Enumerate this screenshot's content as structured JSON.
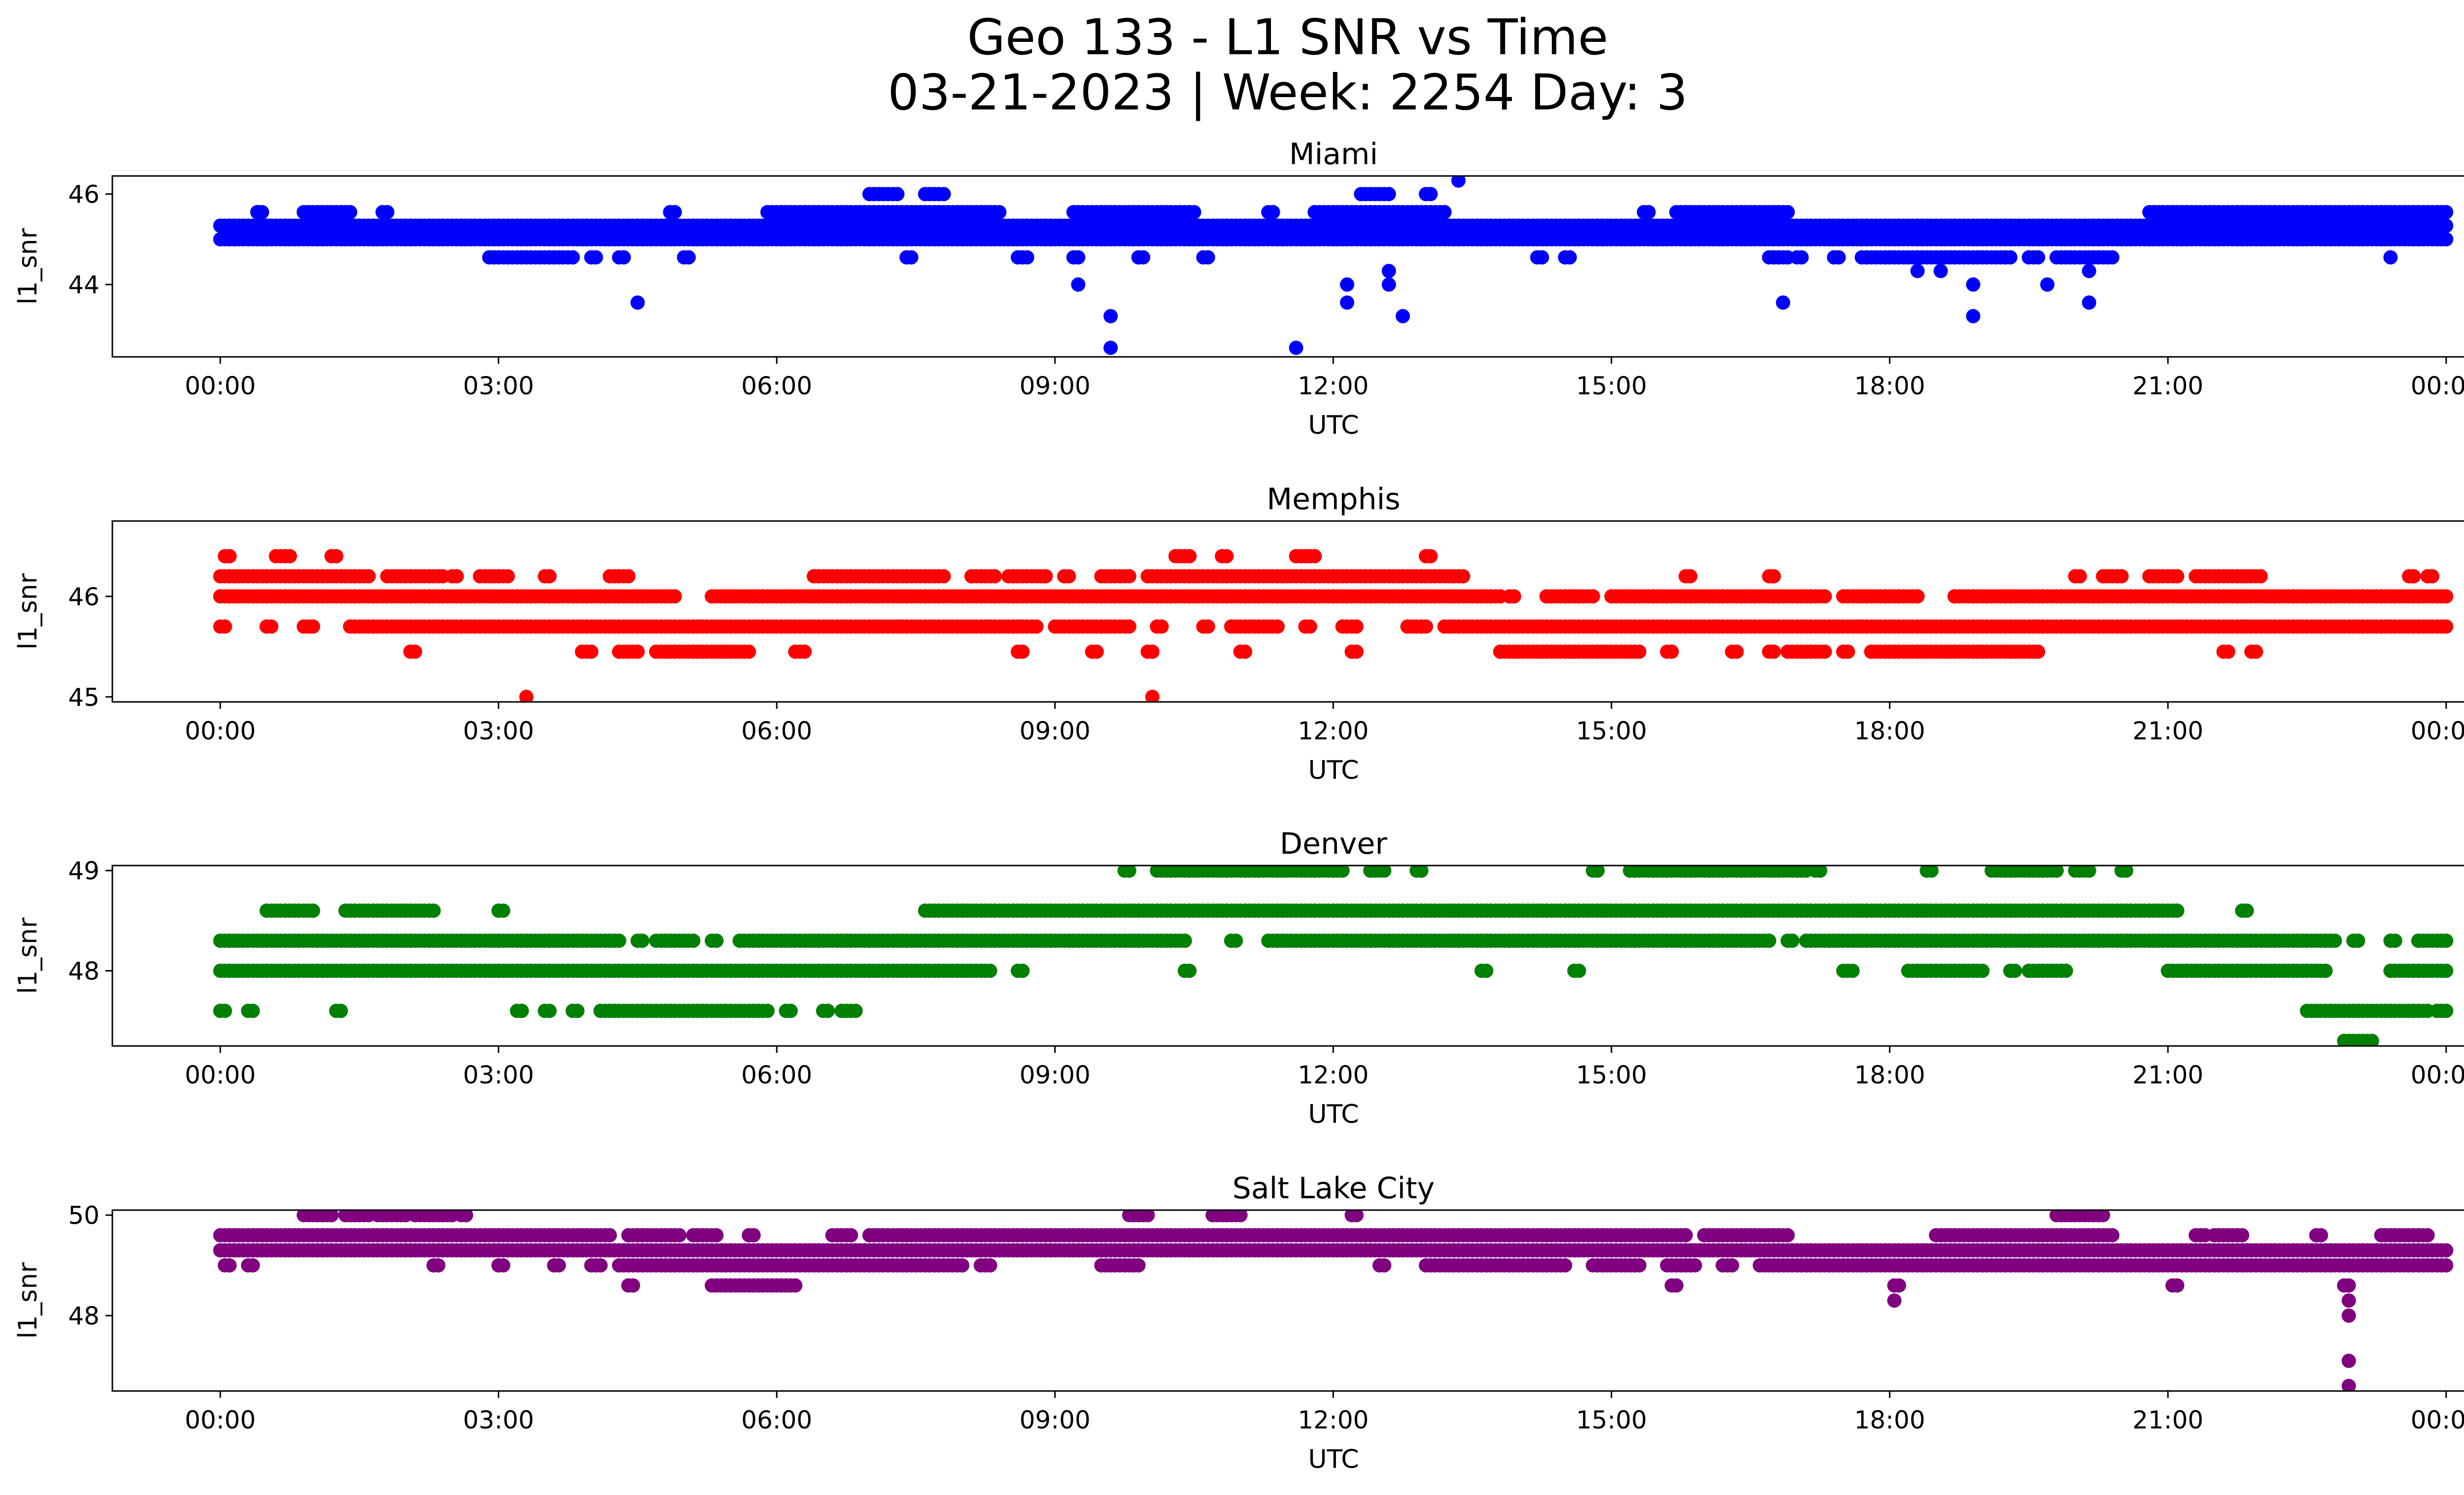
{
  "figure": {
    "title_line1": "Geo 133 - L1 SNR vs Time",
    "title_line2": "03-21-2023 | Week: 2254 Day: 3"
  },
  "chart_data": [
    {
      "type": "scatter",
      "title": "Miami",
      "xlabel": "UTC",
      "ylabel": "l1_snr",
      "color": "#0000ff",
      "ylim": [
        42.4,
        46.4
      ],
      "yticks": [
        44,
        46
      ],
      "xticks": [
        "00:00",
        "03:00",
        "06:00",
        "09:00",
        "12:00",
        "15:00",
        "18:00",
        "21:00",
        "00:00"
      ],
      "xrange_hours": [
        -1.17,
        25.17
      ],
      "levels": [
        {
          "y": 45.0,
          "segments": [
            [
              0,
              24
            ]
          ],
          "step": 0.05
        },
        {
          "y": 45.3,
          "segments": [
            [
              0,
              24
            ]
          ],
          "step": 0.05
        },
        {
          "y": 45.6,
          "segments": [
            [
              0.4,
              0.45
            ],
            [
              0.9,
              1.4
            ],
            [
              1.75,
              1.8
            ],
            [
              4.85,
              4.9
            ],
            [
              5.9,
              8.4
            ],
            [
              9.2,
              10.5
            ],
            [
              11.3,
              11.35
            ],
            [
              11.8,
              13.2
            ],
            [
              15.35,
              15.4
            ],
            [
              15.7,
              16.9
            ],
            [
              20.8,
              24
            ]
          ],
          "step": 0.05
        },
        {
          "y": 46.0,
          "segments": [
            [
              7.0,
              7.3
            ],
            [
              7.6,
              7.8
            ],
            [
              12.3,
              12.6
            ],
            [
              13.0,
              13.05
            ]
          ],
          "step": 0.05
        },
        {
          "y": 44.6,
          "segments": [
            [
              2.9,
              3.8
            ],
            [
              4.0,
              4.05
            ],
            [
              4.3,
              4.35
            ],
            [
              5.0,
              5.05
            ],
            [
              7.4,
              7.45
            ],
            [
              8.6,
              8.7
            ],
            [
              9.2,
              9.25
            ],
            [
              9.9,
              9.95
            ],
            [
              10.6,
              10.65
            ],
            [
              14.2,
              14.25
            ],
            [
              14.5,
              14.55
            ],
            [
              16.7,
              16.9
            ],
            [
              17.0,
              17.05
            ],
            [
              17.4,
              17.45
            ],
            [
              17.7,
              19.3
            ],
            [
              19.5,
              19.6
            ],
            [
              19.8,
              20.4
            ]
          ],
          "step": 0.05
        }
      ],
      "points": [
        [
          0.4,
          45.6
        ],
        [
          4.5,
          43.6
        ],
        [
          9.25,
          44.0
        ],
        [
          9.6,
          43.3
        ],
        [
          9.6,
          42.6
        ],
        [
          11.6,
          42.6
        ],
        [
          12.15,
          44.0
        ],
        [
          12.15,
          43.6
        ],
        [
          12.6,
          44.3
        ],
        [
          12.6,
          44.0
        ],
        [
          12.75,
          43.3
        ],
        [
          13.0,
          45.0
        ],
        [
          13.35,
          46.3
        ],
        [
          16.85,
          43.6
        ],
        [
          18.3,
          44.3
        ],
        [
          18.55,
          44.3
        ],
        [
          18.9,
          44.0
        ],
        [
          18.9,
          43.3
        ],
        [
          19.7,
          44.0
        ],
        [
          20.15,
          44.3
        ],
        [
          20.15,
          43.6
        ],
        [
          23.4,
          44.6
        ]
      ]
    },
    {
      "type": "scatter",
      "title": "Memphis",
      "xlabel": "UTC",
      "ylabel": "l1_snr",
      "color": "#ff0000",
      "ylim": [
        44.95,
        46.75
      ],
      "yticks": [
        45,
        46
      ],
      "xticks": [
        "00:00",
        "03:00",
        "06:00",
        "09:00",
        "12:00",
        "15:00",
        "18:00",
        "21:00",
        "00:00"
      ],
      "xrange_hours": [
        -1.17,
        25.17
      ],
      "levels": [
        {
          "y": 46.0,
          "segments": [
            [
              0,
              4.9
            ],
            [
              5.3,
              13.8
            ],
            [
              13.9,
              13.95
            ],
            [
              14.3,
              14.6
            ],
            [
              14.6,
              14.8
            ],
            [
              15.0,
              17.3
            ],
            [
              17.5,
              18.3
            ],
            [
              18.7,
              24
            ]
          ],
          "step": 0.05
        },
        {
          "y": 45.7,
          "segments": [
            [
              0,
              0.05
            ],
            [
              0.5,
              0.55
            ],
            [
              0.9,
              1.0
            ],
            [
              1.4,
              8.8
            ],
            [
              9.0,
              9.8
            ],
            [
              10.1,
              10.15
            ],
            [
              10.6,
              10.65
            ],
            [
              10.9,
              11.4
            ],
            [
              11.7,
              11.75
            ],
            [
              12.1,
              12.25
            ],
            [
              12.8,
              13.0
            ],
            [
              13.2,
              24
            ]
          ],
          "step": 0.05
        },
        {
          "y": 46.2,
          "segments": [
            [
              0,
              1.6
            ],
            [
              1.8,
              2.4
            ],
            [
              2.5,
              2.55
            ],
            [
              2.8,
              3.1
            ],
            [
              3.5,
              3.55
            ],
            [
              4.2,
              4.4
            ],
            [
              6.4,
              7.8
            ],
            [
              8.1,
              8.35
            ],
            [
              8.5,
              8.9
            ],
            [
              9.1,
              9.15
            ],
            [
              9.5,
              9.8
            ],
            [
              10.0,
              13.4
            ],
            [
              15.8,
              15.85
            ],
            [
              16.7,
              16.75
            ],
            [
              20.0,
              20.05
            ],
            [
              20.3,
              20.5
            ],
            [
              20.8,
              21.1
            ],
            [
              21.3,
              22.0
            ],
            [
              23.6,
              23.65
            ],
            [
              23.8,
              23.85
            ]
          ],
          "step": 0.05
        },
        {
          "y": 46.4,
          "segments": [
            [
              0.05,
              0.1
            ],
            [
              0.6,
              0.75
            ],
            [
              1.2,
              1.25
            ],
            [
              10.3,
              10.45
            ],
            [
              10.8,
              10.85
            ],
            [
              11.6,
              11.8
            ],
            [
              13.0,
              13.05
            ]
          ],
          "step": 0.05
        },
        {
          "y": 45.45,
          "segments": [
            [
              2.05,
              2.1
            ],
            [
              3.9,
              4.0
            ],
            [
              4.3,
              4.5
            ],
            [
              4.7,
              5.7
            ],
            [
              6.2,
              6.3
            ],
            [
              8.6,
              8.65
            ],
            [
              9.4,
              9.45
            ],
            [
              10.0,
              10.05
            ],
            [
              11.0,
              11.05
            ],
            [
              12.2,
              12.25
            ],
            [
              13.8,
              15.3
            ],
            [
              15.6,
              15.65
            ],
            [
              16.3,
              16.35
            ],
            [
              16.7,
              16.75
            ],
            [
              16.9,
              17.3
            ],
            [
              17.5,
              17.55
            ],
            [
              17.8,
              19.6
            ],
            [
              21.6,
              21.65
            ],
            [
              21.9,
              21.95
            ]
          ],
          "step": 0.05
        }
      ],
      "points": [
        [
          3.3,
          45.0
        ],
        [
          10.05,
          45.0
        ]
      ]
    },
    {
      "type": "scatter",
      "title": "Denver",
      "xlabel": "UTC",
      "ylabel": "l1_snr",
      "color": "#008000",
      "ylim": [
        47.25,
        49.05
      ],
      "yticks": [
        48,
        49
      ],
      "xticks": [
        "00:00",
        "03:00",
        "06:00",
        "09:00",
        "12:00",
        "15:00",
        "18:00",
        "21:00",
        "00:00"
      ],
      "xrange_hours": [
        -1.17,
        25.17
      ],
      "levels": [
        {
          "y": 48.0,
          "segments": [
            [
              0,
              8.3
            ],
            [
              8.6,
              8.65
            ],
            [
              10.4,
              10.45
            ],
            [
              13.6,
              13.65
            ],
            [
              14.6,
              14.65
            ],
            [
              17.5,
              17.6
            ],
            [
              18.2,
              19.0
            ],
            [
              19.3,
              19.35
            ],
            [
              19.5,
              19.9
            ],
            [
              21.0,
              22.7
            ],
            [
              23.4,
              24
            ]
          ],
          "step": 0.05
        },
        {
          "y": 48.3,
          "segments": [
            [
              0,
              4.3
            ],
            [
              4.5,
              4.55
            ],
            [
              4.7,
              5.1
            ],
            [
              5.3,
              5.35
            ],
            [
              5.6,
              10.4
            ],
            [
              10.9,
              10.95
            ],
            [
              11.3,
              16.7
            ],
            [
              16.9,
              16.95
            ],
            [
              17.1,
              22.8
            ],
            [
              23.0,
              23.05
            ],
            [
              23.4,
              23.45
            ],
            [
              23.7,
              24
            ]
          ],
          "step": 0.05
        },
        {
          "y": 48.6,
          "segments": [
            [
              0.5,
              1.0
            ],
            [
              1.35,
              2.3
            ],
            [
              3.0,
              3.05
            ],
            [
              7.6,
              21.1
            ],
            [
              21.8,
              21.85
            ]
          ],
          "step": 0.05
        },
        {
          "y": 49.0,
          "segments": [
            [
              9.75,
              9.8
            ],
            [
              10.1,
              12.1
            ],
            [
              12.4,
              12.55
            ],
            [
              12.9,
              12.95
            ],
            [
              14.8,
              14.85
            ],
            [
              15.2,
              17.1
            ],
            [
              17.2,
              17.25
            ],
            [
              18.4,
              18.45
            ],
            [
              19.1,
              19.8
            ],
            [
              20.0,
              20.15
            ],
            [
              20.5,
              20.55
            ]
          ],
          "step": 0.05
        },
        {
          "y": 47.6,
          "segments": [
            [
              0,
              0.05
            ],
            [
              0.3,
              0.35
            ],
            [
              1.25,
              1.3
            ],
            [
              3.2,
              3.25
            ],
            [
              3.5,
              3.55
            ],
            [
              3.8,
              3.85
            ],
            [
              4.1,
              5.9
            ],
            [
              6.1,
              6.15
            ],
            [
              6.5,
              6.55
            ],
            [
              6.7,
              6.85
            ],
            [
              22.5,
              23.8
            ],
            [
              23.9,
              24
            ]
          ],
          "step": 0.05
        },
        {
          "y": 47.3,
          "segments": [
            [
              22.9,
              23.2
            ]
          ],
          "step": 0.05
        }
      ],
      "points": []
    },
    {
      "type": "scatter",
      "title": "Salt Lake City",
      "xlabel": "UTC",
      "ylabel": "l1_snr",
      "color": "#800080",
      "ylim": [
        46.5,
        50.1
      ],
      "yticks": [
        48,
        50
      ],
      "xticks": [
        "00:00",
        "03:00",
        "06:00",
        "09:00",
        "12:00",
        "15:00",
        "18:00",
        "21:00",
        "00:00"
      ],
      "xrange_hours": [
        -1.17,
        25.17
      ],
      "levels": [
        {
          "y": 49.3,
          "segments": [
            [
              0,
              24
            ]
          ],
          "step": 0.05
        },
        {
          "y": 49.0,
          "segments": [
            [
              0.05,
              0.1
            ],
            [
              0.3,
              0.35
            ],
            [
              2.3,
              2.35
            ],
            [
              3.0,
              3.05
            ],
            [
              3.6,
              3.65
            ],
            [
              4.0,
              4.1
            ],
            [
              4.3,
              8.0
            ],
            [
              8.2,
              8.3
            ],
            [
              9.5,
              9.9
            ],
            [
              12.5,
              12.55
            ],
            [
              13.0,
              14.5
            ],
            [
              14.8,
              15.3
            ],
            [
              15.6,
              15.9
            ],
            [
              16.2,
              16.3
            ],
            [
              16.6,
              24
            ]
          ],
          "step": 0.05
        },
        {
          "y": 49.6,
          "segments": [
            [
              0,
              4.2
            ],
            [
              4.4,
              4.95
            ],
            [
              5.1,
              5.35
            ],
            [
              5.7,
              5.75
            ],
            [
              6.6,
              6.8
            ],
            [
              7.0,
              15.8
            ],
            [
              16.0,
              16.9
            ],
            [
              18.5,
              20.4
            ],
            [
              21.3,
              21.4
            ],
            [
              21.5,
              21.8
            ],
            [
              22.6,
              22.65
            ],
            [
              23.3,
              23.8
            ]
          ],
          "step": 0.05
        },
        {
          "y": 50.0,
          "segments": [
            [
              0.9,
              1.2
            ],
            [
              1.35,
              1.6
            ],
            [
              1.7,
              2.0
            ],
            [
              2.1,
              2.5
            ],
            [
              2.6,
              2.65
            ],
            [
              9.8,
              10.0
            ],
            [
              10.7,
              11.0
            ],
            [
              12.2,
              12.25
            ],
            [
              19.8,
              20.3
            ]
          ],
          "step": 0.05
        },
        {
          "y": 48.6,
          "segments": [
            [
              4.4,
              4.45
            ],
            [
              5.3,
              6.2
            ],
            [
              15.65,
              15.7
            ],
            [
              18.05,
              18.1
            ],
            [
              21.05,
              21.1
            ],
            [
              22.9,
              22.95
            ]
          ],
          "step": 0.05
        }
      ],
      "points": [
        [
          18.05,
          48.3
        ],
        [
          22.95,
          48.3
        ],
        [
          22.95,
          48.0
        ],
        [
          22.95,
          47.1
        ],
        [
          22.95,
          46.6
        ]
      ]
    }
  ]
}
